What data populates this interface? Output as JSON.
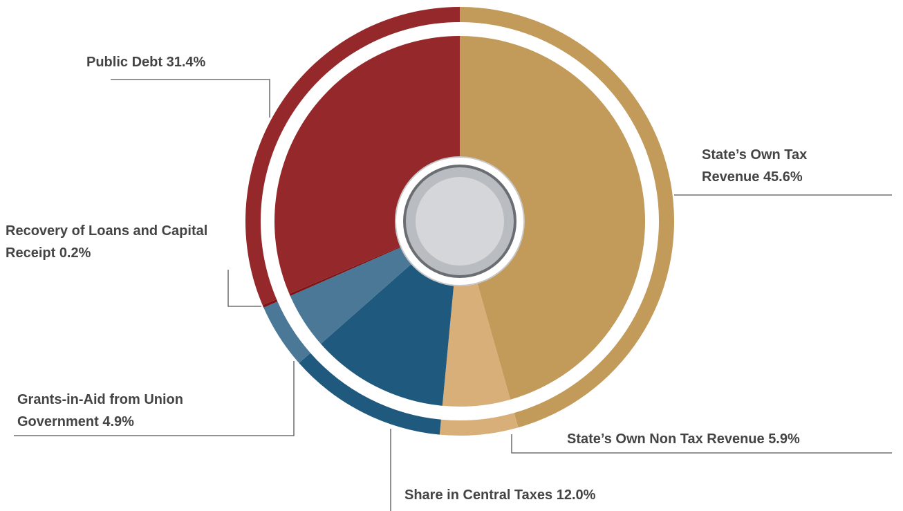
{
  "chart_data": {
    "type": "pie",
    "categories": [
      "State’s Own Tax Revenue",
      "State’s Own Non Tax Revenue",
      "Share in Central Taxes",
      "Grants-in-Aid from Union Government",
      "Recovery of Loans and Capital Receipt",
      "Public Debt"
    ],
    "values": [
      45.6,
      5.9,
      12.0,
      4.9,
      0.2,
      31.4
    ],
    "value_labels": [
      "45.6%",
      "5.9%",
      "12.0%",
      "4.9%",
      "0.2%",
      "31.4%"
    ],
    "colors": [
      "#c29a5a",
      "#d8af78",
      "#1f5a7e",
      "#4a7896",
      "#7e1418",
      "#94282a"
    ]
  }
}
